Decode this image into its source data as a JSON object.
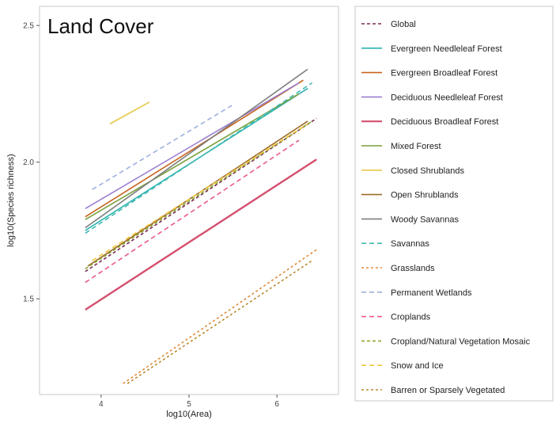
{
  "chart_data": {
    "type": "line",
    "title": "Land Cover",
    "xlabel": "log10(Area)",
    "ylabel": "log10(Species richness)",
    "xlim": [
      3.3,
      6.7
    ],
    "ylim": [
      1.15,
      2.57
    ],
    "x_ticks": [
      4,
      5,
      6
    ],
    "y_ticks": [
      1.5,
      2.0,
      2.5
    ],
    "x_tick_labels": [
      "4",
      "5",
      "6"
    ],
    "y_tick_labels": [
      "1.5",
      "2.0",
      "2.5"
    ],
    "grid": false,
    "legend_position": "right",
    "series": [
      {
        "name": "Global",
        "color": "#7a2a55",
        "dash": "4,3",
        "width": 1.6,
        "x": [
          3.82,
          6.45
        ],
        "y": [
          1.6,
          2.16
        ]
      },
      {
        "name": "Evergreen Needleleaf Forest",
        "color": "#2ab3b0",
        "dash": "",
        "width": 1.6,
        "x": [
          3.82,
          6.35
        ],
        "y": [
          1.75,
          2.27
        ]
      },
      {
        "name": "Evergreen Broadleaf Forest",
        "color": "#c8641e",
        "dash": "",
        "width": 1.6,
        "x": [
          3.82,
          6.3
        ],
        "y": [
          1.8,
          2.3
        ]
      },
      {
        "name": "Deciduous Needleleaf Forest",
        "color": "#9b7fd0",
        "dash": "",
        "width": 1.6,
        "x": [
          3.82,
          6.25
        ],
        "y": [
          1.83,
          2.29
        ]
      },
      {
        "name": "Deciduous Broadleaf Forest",
        "color": "#d4506f",
        "dash": "",
        "width": 2.4,
        "x": [
          3.82,
          6.45
        ],
        "y": [
          1.46,
          2.01
        ]
      },
      {
        "name": "Mixed Forest",
        "color": "#7aa03c",
        "dash": "",
        "width": 1.6,
        "x": [
          3.82,
          6.25
        ],
        "y": [
          1.79,
          2.25
        ]
      },
      {
        "name": "Closed Shrublands",
        "color": "#e6c84a",
        "dash": "",
        "width": 1.6,
        "x": [
          4.1,
          4.55
        ],
        "y": [
          2.14,
          2.22
        ]
      },
      {
        "name": "Open Shrublands",
        "color": "#9c6a2a",
        "dash": "",
        "width": 1.6,
        "x": [
          3.85,
          6.35
        ],
        "y": [
          1.62,
          2.15
        ]
      },
      {
        "name": "Woody Savannas",
        "color": "#7e7e7e",
        "dash": "",
        "width": 1.6,
        "x": [
          3.82,
          6.35
        ],
        "y": [
          1.76,
          2.34
        ]
      },
      {
        "name": "Savannas",
        "color": "#44b8b0",
        "dash": "6,4",
        "width": 1.6,
        "x": [
          3.82,
          6.4
        ],
        "y": [
          1.74,
          2.29
        ]
      },
      {
        "name": "Grasslands",
        "color": "#e08a3a",
        "dash": "3,3",
        "width": 1.6,
        "x": [
          4.25,
          6.45
        ],
        "y": [
          1.19,
          1.68
        ]
      },
      {
        "name": "Permanent Wetlands",
        "color": "#9fb0e0",
        "dash": "6,4",
        "width": 1.6,
        "x": [
          3.9,
          5.5
        ],
        "y": [
          1.9,
          2.21
        ]
      },
      {
        "name": "Croplands",
        "color": "#ea5a8c",
        "dash": "6,4",
        "width": 1.6,
        "x": [
          3.82,
          6.25
        ],
        "y": [
          1.56,
          2.08
        ]
      },
      {
        "name": "Cropland/Natural Vegetation Mosaic",
        "color": "#8aa82e",
        "dash": "4,3",
        "width": 1.6,
        "x": [
          3.82,
          6.4
        ],
        "y": [
          1.61,
          2.15
        ]
      },
      {
        "name": "Snow and Ice",
        "color": "#f0c83c",
        "dash": "6,4",
        "width": 1.6,
        "x": [
          3.9,
          6.35
        ],
        "y": [
          1.64,
          2.14
        ]
      },
      {
        "name": "Barren or Sparsely Vegetated",
        "color": "#b98a30",
        "dash": "3,3",
        "width": 1.6,
        "x": [
          4.3,
          6.4
        ],
        "y": [
          1.19,
          1.64
        ]
      }
    ]
  }
}
